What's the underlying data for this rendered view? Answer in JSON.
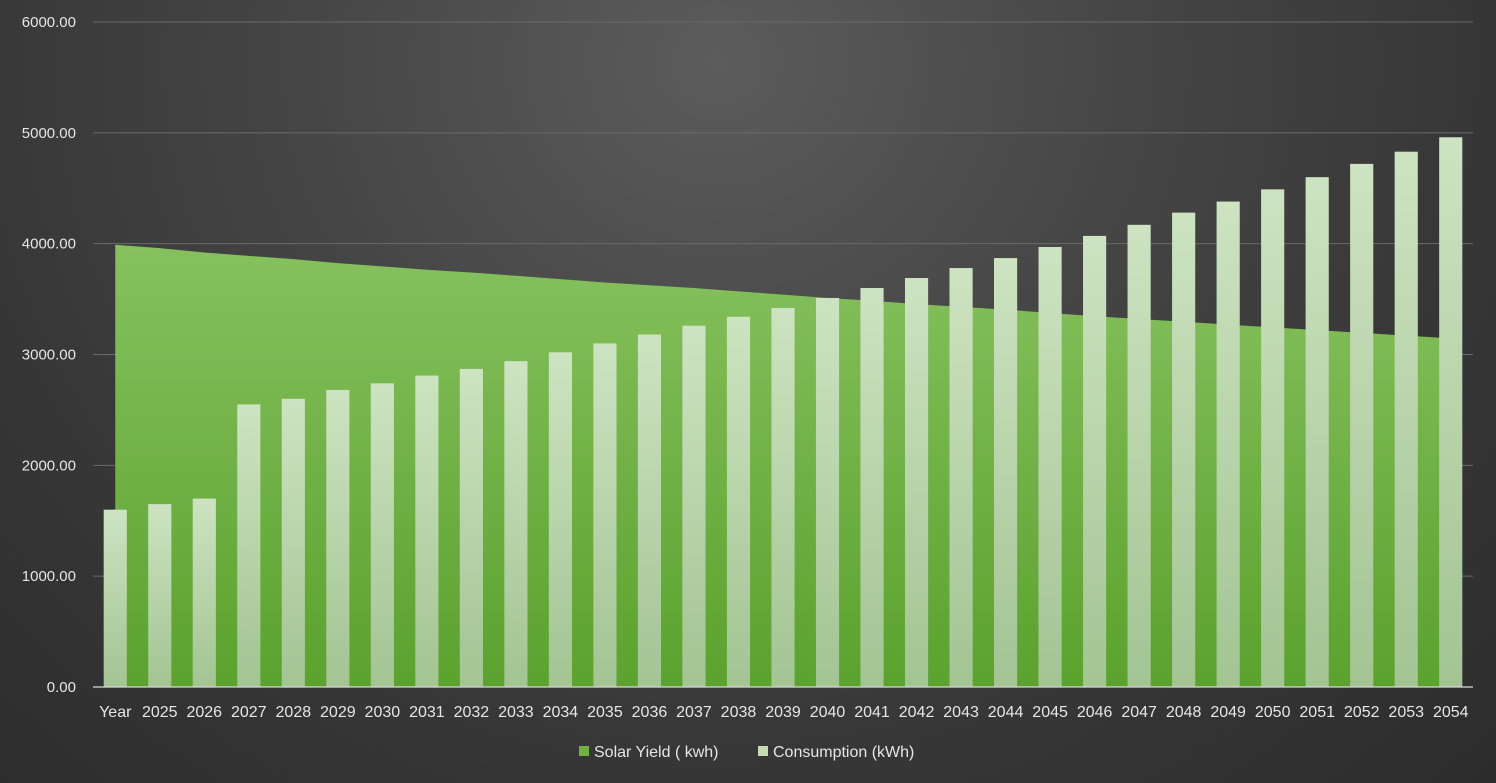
{
  "chart_data": {
    "type": "bar",
    "title": "",
    "xlabel": "",
    "ylabel": "",
    "categories": [
      "Year",
      "2025",
      "2026",
      "2027",
      "2028",
      "2029",
      "2030",
      "2031",
      "2032",
      "2033",
      "2034",
      "2035",
      "2036",
      "2037",
      "2038",
      "2039",
      "2040",
      "2041",
      "2042",
      "2043",
      "2044",
      "2045",
      "2046",
      "2047",
      "2048",
      "2049",
      "2050",
      "2051",
      "2052",
      "2053",
      "2054"
    ],
    "ylim": [
      0,
      6000
    ],
    "yticks": [
      "0.00",
      "1000.00",
      "2000.00",
      "3000.00",
      "4000.00",
      "5000.00",
      "6000.00"
    ],
    "grid": true,
    "legend_position": "bottom",
    "series": [
      {
        "name": "Solar Yield ( kwh)",
        "render": "area",
        "color": "#6fb23f",
        "values": [
          3990,
          3960,
          3920,
          3890,
          3860,
          3825,
          3795,
          3765,
          3740,
          3710,
          3680,
          3650,
          3625,
          3600,
          3570,
          3540,
          3510,
          3485,
          3455,
          3430,
          3405,
          3375,
          3345,
          3320,
          3295,
          3270,
          3245,
          3220,
          3195,
          3170,
          3145
        ]
      },
      {
        "name": "Consumption (kWh)",
        "render": "bar",
        "color": "#c4dbb5",
        "values": [
          1600,
          1650,
          1700,
          2550,
          2600,
          2680,
          2740,
          2810,
          2870,
          2940,
          3020,
          3100,
          3180,
          3260,
          3340,
          3420,
          3510,
          3600,
          3690,
          3780,
          3870,
          3970,
          4070,
          4170,
          4280,
          4380,
          4490,
          4600,
          4720,
          4830,
          4960
        ]
      }
    ]
  }
}
